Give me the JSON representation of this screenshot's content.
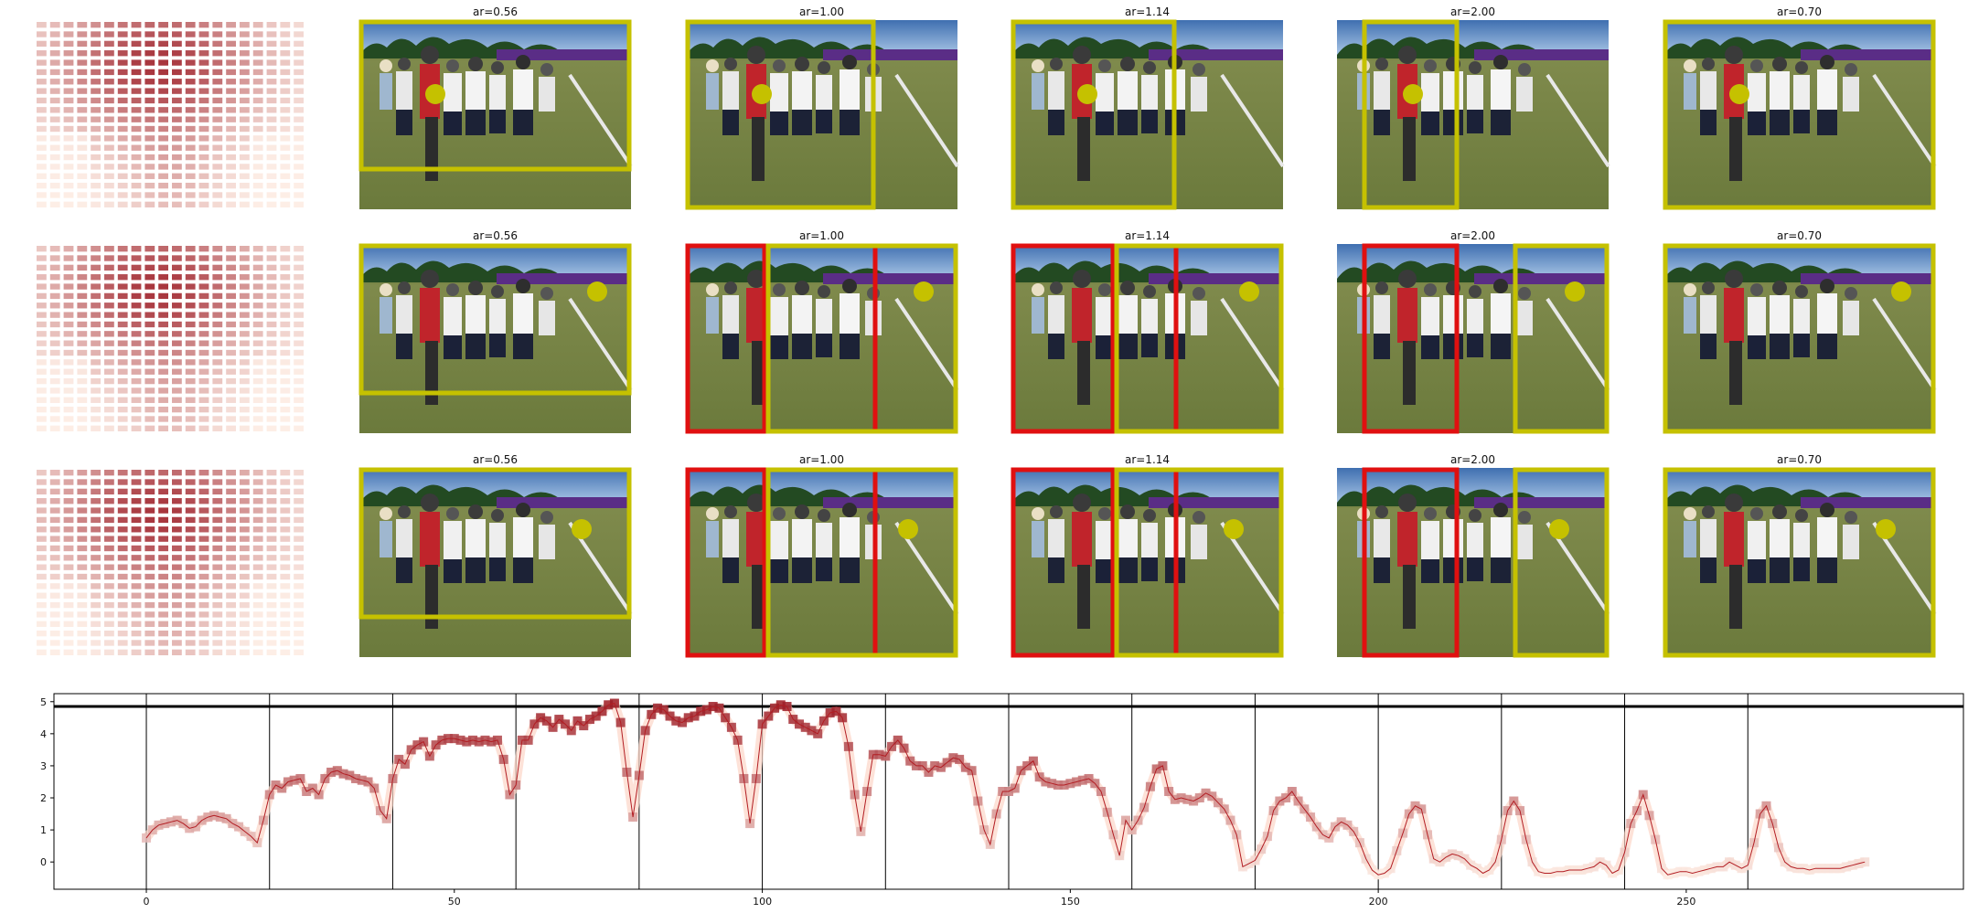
{
  "grid": {
    "rows": [
      {
        "panels": [
          {
            "ar_label": "ar=0.56",
            "dot_color": "#c5c100"
          },
          {
            "ar_label": "ar=1.00",
            "dot_color": "#c5c100"
          },
          {
            "ar_label": "ar=1.14",
            "dot_color": "#c5c100"
          },
          {
            "ar_label": "ar=2.00",
            "dot_color": "#c5c100"
          },
          {
            "ar_label": "ar=0.70",
            "dot_color": "#c5c100"
          }
        ]
      },
      {
        "panels": [
          {
            "ar_label": "ar=0.56"
          },
          {
            "ar_label": "ar=1.00"
          },
          {
            "ar_label": "ar=1.14"
          },
          {
            "ar_label": "ar=2.00"
          },
          {
            "ar_label": "ar=0.70"
          }
        ]
      },
      {
        "panels": [
          {
            "ar_label": "ar=0.56"
          },
          {
            "ar_label": "ar=1.00"
          },
          {
            "ar_label": "ar=1.14"
          },
          {
            "ar_label": "ar=2.00"
          },
          {
            "ar_label": "ar=0.70"
          }
        ]
      }
    ],
    "colors": {
      "box_yellow": "#c5c100",
      "box_red": "#e01010",
      "heat_low": "#fdeee6",
      "heat_high": "#9b1a24"
    }
  },
  "chart_data": {
    "type": "line",
    "x_ticks": [
      0,
      50,
      100,
      150,
      200,
      250
    ],
    "y_ticks": [
      0,
      1,
      2,
      3,
      4,
      5
    ],
    "xlim": [
      -15,
      295
    ],
    "ylim": [
      -0.85,
      5.25
    ],
    "horizontal_line": 4.85,
    "vertical_lines": [
      0,
      20,
      40,
      60,
      80,
      100,
      120,
      140,
      160,
      180,
      200,
      220,
      240,
      260
    ],
    "series": [
      {
        "values": [
          0.75,
          1.0,
          1.15,
          1.2,
          1.25,
          1.3,
          1.2,
          1.05,
          1.1,
          1.3,
          1.4,
          1.45,
          1.4,
          1.35,
          1.2,
          1.1,
          0.95,
          0.8,
          0.6,
          1.3,
          2.1,
          2.4,
          2.3,
          2.5,
          2.55,
          2.6,
          2.2,
          2.3,
          2.1,
          2.6,
          2.8,
          2.85,
          2.75,
          2.7,
          2.6,
          2.55,
          2.5,
          2.3,
          1.6,
          1.35,
          2.6,
          3.2,
          3.05,
          3.5,
          3.65,
          3.75,
          3.3,
          3.65,
          3.8,
          3.85,
          3.85,
          3.8,
          3.75,
          3.8,
          3.75,
          3.8,
          3.75,
          3.8,
          3.2,
          2.1,
          2.4,
          3.8,
          3.8,
          4.3,
          4.5,
          4.4,
          4.2,
          4.45,
          4.3,
          4.1,
          4.4,
          4.25,
          4.45,
          4.55,
          4.7,
          4.9,
          4.95,
          4.35,
          2.8,
          1.4,
          2.7,
          4.1,
          4.6,
          4.8,
          4.75,
          4.55,
          4.4,
          4.35,
          4.5,
          4.55,
          4.7,
          4.75,
          4.85,
          4.8,
          4.5,
          4.2,
          3.8,
          2.6,
          1.2,
          2.6,
          4.3,
          4.55,
          4.8,
          4.9,
          4.85,
          4.45,
          4.3,
          4.2,
          4.1,
          4.0,
          4.4,
          4.65,
          4.7,
          4.5,
          3.6,
          2.1,
          0.95,
          2.2,
          3.35,
          3.35,
          3.3,
          3.6,
          3.8,
          3.55,
          3.15,
          3.0,
          3.0,
          2.8,
          3.0,
          2.95,
          3.1,
          3.25,
          3.2,
          2.95,
          2.85,
          1.9,
          1.0,
          0.55,
          1.5,
          2.2,
          2.2,
          2.3,
          2.85,
          3.0,
          3.15,
          2.65,
          2.5,
          2.45,
          2.4,
          2.4,
          2.45,
          2.5,
          2.55,
          2.6,
          2.45,
          2.2,
          1.55,
          0.85,
          0.2,
          1.3,
          1.0,
          1.3,
          1.7,
          2.35,
          2.9,
          3.0,
          2.2,
          1.95,
          2.0,
          1.95,
          1.9,
          2.0,
          2.15,
          2.05,
          1.85,
          1.65,
          1.3,
          0.85,
          -0.15,
          -0.05,
          0.05,
          0.4,
          0.8,
          1.6,
          1.9,
          2.0,
          2.2,
          1.9,
          1.65,
          1.4,
          1.1,
          0.85,
          0.75,
          1.1,
          1.25,
          1.15,
          0.95,
          0.6,
          0.1,
          -0.25,
          -0.4,
          -0.35,
          -0.2,
          0.35,
          0.9,
          1.5,
          1.75,
          1.65,
          0.85,
          0.1,
          0.0,
          0.15,
          0.25,
          0.2,
          0.1,
          -0.1,
          -0.2,
          -0.35,
          -0.25,
          0.0,
          0.7,
          1.6,
          1.9,
          1.6,
          0.7,
          0.0,
          -0.3,
          -0.35,
          -0.35,
          -0.3,
          -0.3,
          -0.25,
          -0.25,
          -0.25,
          -0.2,
          -0.15,
          0.0,
          -0.1,
          -0.35,
          -0.25,
          0.3,
          1.2,
          1.6,
          2.1,
          1.45,
          0.7,
          -0.2,
          -0.4,
          -0.35,
          -0.3,
          -0.3,
          -0.35,
          -0.3,
          -0.25,
          -0.2,
          -0.15,
          -0.15,
          0.0,
          -0.1,
          -0.2,
          -0.1,
          0.6,
          1.5,
          1.75,
          1.2,
          0.45,
          0.0,
          -0.15,
          -0.2,
          -0.2,
          -0.25,
          -0.2,
          -0.2,
          -0.2,
          -0.2,
          -0.2,
          -0.15,
          -0.1,
          -0.05,
          0.0
        ]
      }
    ]
  }
}
